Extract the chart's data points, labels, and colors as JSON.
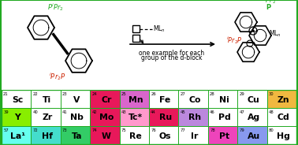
{
  "table": {
    "rows": [
      [
        {
          "num": "21",
          "sym": "Sc",
          "bg": "#ffffff",
          "fg": "#000000"
        },
        {
          "num": "22",
          "sym": "Ti",
          "bg": "#ffffff",
          "fg": "#000000"
        },
        {
          "num": "23",
          "sym": "V",
          "bg": "#ffffff",
          "fg": "#000000"
        },
        {
          "num": "24",
          "sym": "Cr",
          "bg": "#e8185a",
          "fg": "#000000"
        },
        {
          "num": "25",
          "sym": "Mn",
          "bg": "#d966cc",
          "fg": "#000000"
        },
        {
          "num": "26",
          "sym": "Fe",
          "bg": "#ffffff",
          "fg": "#000000"
        },
        {
          "num": "27",
          "sym": "Co",
          "bg": "#ffffff",
          "fg": "#000000"
        },
        {
          "num": "28",
          "sym": "Ni",
          "bg": "#ffffff",
          "fg": "#000000"
        },
        {
          "num": "29",
          "sym": "Cu",
          "bg": "#ffffff",
          "fg": "#000000"
        },
        {
          "num": "30",
          "sym": "Zn",
          "bg": "#f0b840",
          "fg": "#000000"
        }
      ],
      [
        {
          "num": "39",
          "sym": "Y",
          "bg": "#88ee00",
          "fg": "#000000"
        },
        {
          "num": "40",
          "sym": "Zr",
          "bg": "#ffffff",
          "fg": "#000000"
        },
        {
          "num": "41",
          "sym": "Nb",
          "bg": "#ffffff",
          "fg": "#000000"
        },
        {
          "num": "42",
          "sym": "Mo",
          "bg": "#e8185a",
          "fg": "#000000"
        },
        {
          "num": "43",
          "sym": "Tc*",
          "bg": "#ff99cc",
          "fg": "#000000"
        },
        {
          "num": "44",
          "sym": "Ru",
          "bg": "#e8185a",
          "fg": "#000000"
        },
        {
          "num": "45",
          "sym": "Rh",
          "bg": "#bb88dd",
          "fg": "#000000"
        },
        {
          "num": "46",
          "sym": "Pd",
          "bg": "#ffffff",
          "fg": "#000000"
        },
        {
          "num": "47",
          "sym": "Ag",
          "bg": "#ffffff",
          "fg": "#000000"
        },
        {
          "num": "48",
          "sym": "Cd",
          "bg": "#ffffff",
          "fg": "#000000"
        }
      ],
      [
        {
          "num": "57",
          "sym": "La¹",
          "bg": "#66ffee",
          "fg": "#000000"
        },
        {
          "num": "72",
          "sym": "Hf",
          "bg": "#44ddcc",
          "fg": "#000000"
        },
        {
          "num": "73",
          "sym": "Ta",
          "bg": "#33cc66",
          "fg": "#000000"
        },
        {
          "num": "74",
          "sym": "W",
          "bg": "#e8185a",
          "fg": "#000000"
        },
        {
          "num": "75",
          "sym": "Re",
          "bg": "#ffffff",
          "fg": "#000000"
        },
        {
          "num": "76",
          "sym": "Os",
          "bg": "#ffffff",
          "fg": "#000000"
        },
        {
          "num": "77",
          "sym": "Ir",
          "bg": "#ffffff",
          "fg": "#000000"
        },
        {
          "num": "78",
          "sym": "Pt",
          "bg": "#ee44bb",
          "fg": "#000000"
        },
        {
          "num": "79",
          "sym": "Au",
          "bg": "#8899ee",
          "fg": "#000000"
        },
        {
          "num": "80",
          "sym": "Hg",
          "bg": "#ffffff",
          "fg": "#000000"
        }
      ]
    ]
  },
  "arrow_text_1": "one example for each",
  "arrow_text_2": "group of the d-block",
  "table_border": "#22aa22",
  "green_color": "#22aa22",
  "red_color": "#cc2200"
}
